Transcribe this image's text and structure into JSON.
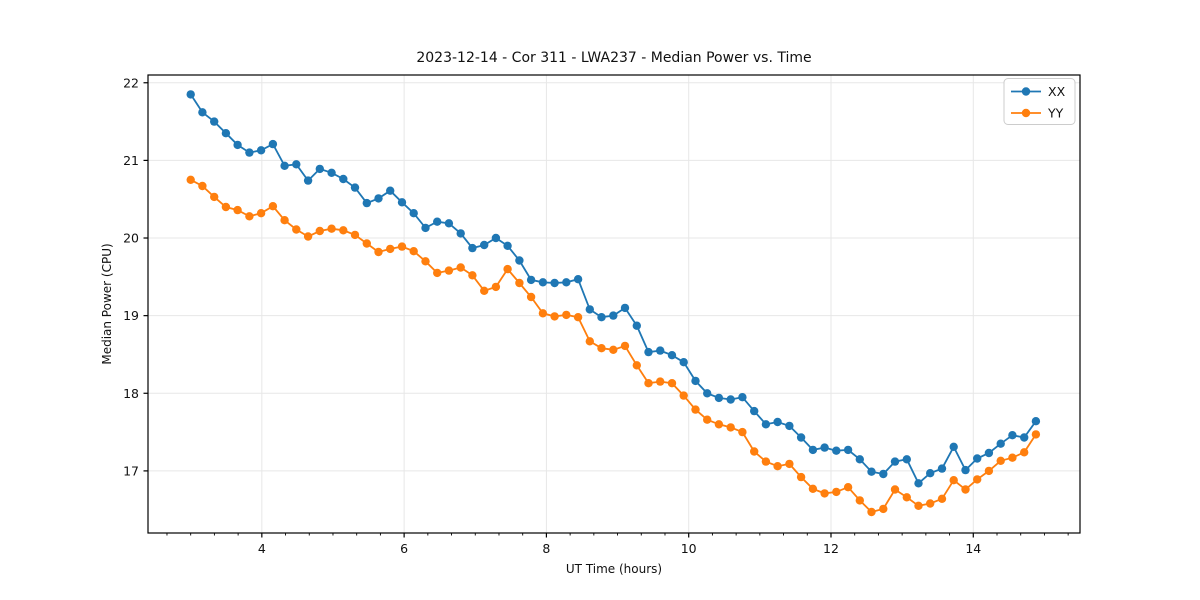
{
  "title": "2023-12-14 - Cor 311 - LWA237 - Median Power vs. Time",
  "chart_data": {
    "type": "line",
    "title": "2023-12-14 - Cor 311 - LWA237 - Median Power vs. Time",
    "xlabel": "UT Time (hours)",
    "ylabel": "Median Power (CPU)",
    "xlim": [
      2.4,
      15.5
    ],
    "ylim": [
      16.2,
      22.1
    ],
    "xticks": [
      4,
      6,
      8,
      10,
      12,
      14
    ],
    "yticks": [
      17,
      18,
      19,
      20,
      21,
      22
    ],
    "x_minor_step": 0.3333,
    "grid": true,
    "grid_color": "#e7e7e7",
    "legend_position": "upper right",
    "legend_items": [
      "XX",
      "YY"
    ],
    "x": [
      3.0,
      3.165,
      3.33,
      3.495,
      3.66,
      3.825,
      3.99,
      4.155,
      4.32,
      4.485,
      4.65,
      4.815,
      4.98,
      5.145,
      5.31,
      5.475,
      5.64,
      5.805,
      5.97,
      6.135,
      6.3,
      6.465,
      6.63,
      6.795,
      6.96,
      7.125,
      7.29,
      7.455,
      7.62,
      7.785,
      7.95,
      8.115,
      8.28,
      8.445,
      8.61,
      8.775,
      8.94,
      9.105,
      9.27,
      9.435,
      9.6,
      9.765,
      9.93,
      10.095,
      10.26,
      10.425,
      10.59,
      10.755,
      10.92,
      11.085,
      11.25,
      11.415,
      11.58,
      11.745,
      11.91,
      12.075,
      12.24,
      12.405,
      12.57,
      12.735,
      12.9,
      13.065,
      13.23,
      13.395,
      13.56,
      13.725,
      13.89,
      14.055,
      14.22,
      14.385,
      14.55,
      14.715,
      14.88
    ],
    "series": [
      {
        "name": "XX",
        "color": "#1f77b4",
        "values": [
          21.85,
          21.62,
          21.5,
          21.35,
          21.2,
          21.1,
          21.13,
          21.21,
          20.93,
          20.95,
          20.74,
          20.89,
          20.84,
          20.76,
          20.65,
          20.45,
          20.51,
          20.61,
          20.46,
          20.32,
          20.13,
          20.21,
          20.19,
          20.06,
          19.87,
          19.91,
          20.0,
          19.9,
          19.71,
          19.46,
          19.43,
          19.42,
          19.43,
          19.47,
          19.08,
          18.98,
          19.0,
          19.1,
          18.87,
          18.53,
          18.55,
          18.49,
          18.4,
          18.16,
          18.0,
          17.94,
          17.92,
          17.95,
          17.77,
          17.6,
          17.63,
          17.58,
          17.43,
          17.27,
          17.3,
          17.26,
          17.27,
          17.15,
          16.99,
          16.96,
          17.12,
          17.15,
          16.84,
          16.97,
          17.03,
          17.31,
          17.01,
          17.16,
          17.23,
          17.35,
          17.46,
          17.43,
          17.64
        ]
      },
      {
        "name": "YY",
        "color": "#ff7f0e",
        "values": [
          20.75,
          20.67,
          20.53,
          20.4,
          20.36,
          20.28,
          20.32,
          20.41,
          20.23,
          20.11,
          20.02,
          20.09,
          20.12,
          20.1,
          20.04,
          19.93,
          19.82,
          19.86,
          19.89,
          19.83,
          19.7,
          19.55,
          19.58,
          19.62,
          19.52,
          19.32,
          19.37,
          19.6,
          19.42,
          19.24,
          19.03,
          18.99,
          19.01,
          18.98,
          18.67,
          18.58,
          18.56,
          18.61,
          18.36,
          18.13,
          18.15,
          18.13,
          17.97,
          17.79,
          17.66,
          17.6,
          17.56,
          17.5,
          17.25,
          17.12,
          17.06,
          17.09,
          16.92,
          16.77,
          16.71,
          16.73,
          16.79,
          16.62,
          16.47,
          16.51,
          16.76,
          16.66,
          16.55,
          16.58,
          16.64,
          16.88,
          16.76,
          16.89,
          17.0,
          17.13,
          17.17,
          17.24,
          17.47
        ]
      }
    ]
  }
}
